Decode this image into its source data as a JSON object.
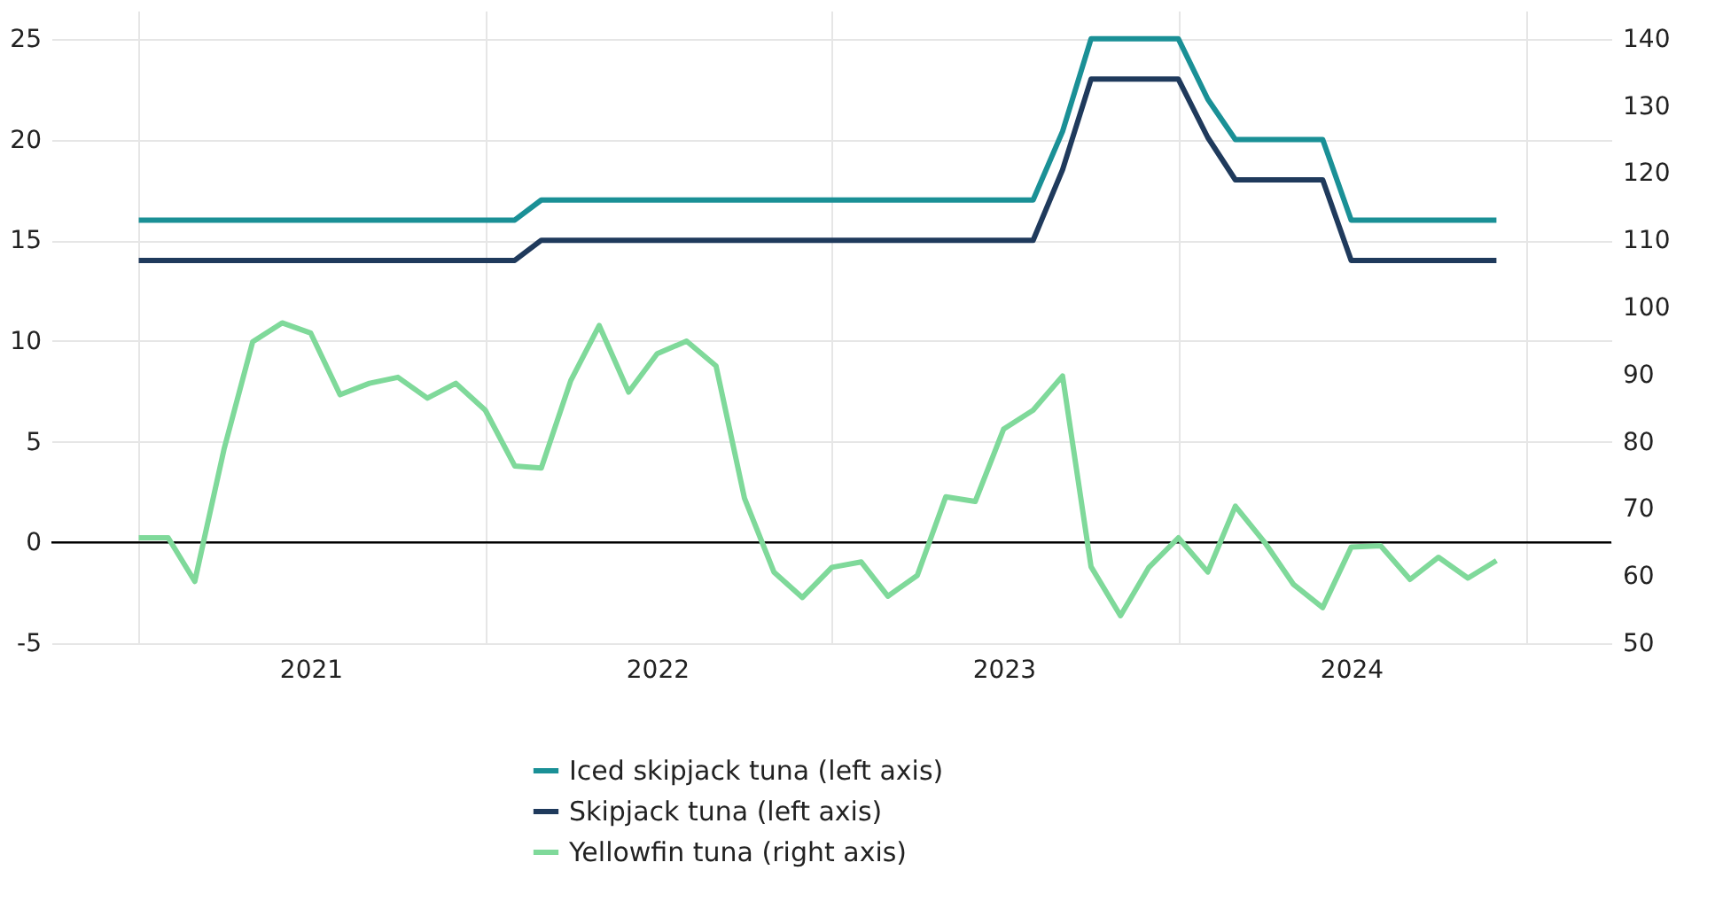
{
  "chart_data": {
    "type": "line",
    "x": [
      "2021-01",
      "2021-02",
      "2021-03",
      "2021-04",
      "2021-05",
      "2021-06",
      "2021-07",
      "2021-08",
      "2021-09",
      "2021-10",
      "2021-11",
      "2021-12",
      "2022-01",
      "2022-02",
      "2022-03",
      "2022-04",
      "2022-05",
      "2022-06",
      "2022-07",
      "2022-08",
      "2022-09",
      "2022-10",
      "2022-11",
      "2022-12",
      "2023-01",
      "2023-02",
      "2023-03",
      "2023-04",
      "2023-05",
      "2023-06",
      "2023-07",
      "2023-08",
      "2023-09",
      "2023-10",
      "2023-11",
      "2023-12",
      "2024-01",
      "2024-02",
      "2024-03",
      "2024-04",
      "2024-05",
      "2024-06",
      "2024-07",
      "2024-08",
      "2024-09",
      "2024-10",
      "2024-11",
      "2024-12"
    ],
    "series": [
      {
        "name": "Iced skipjack tuna (left axis)",
        "color": "#1a9096",
        "axis": "y",
        "values": [
          16,
          16,
          16,
          16,
          16,
          16,
          16,
          16,
          16,
          16,
          16,
          16,
          16,
          16,
          17,
          17,
          17,
          17,
          17,
          17,
          17,
          17,
          17,
          17,
          17,
          17,
          17,
          17,
          17,
          17,
          17,
          17,
          20.4,
          25,
          25,
          25,
          25,
          22,
          20,
          20,
          20,
          20,
          16,
          16,
          16,
          16,
          16,
          16
        ]
      },
      {
        "name": "Skipjack tuna (left axis)",
        "color": "#1f3a5c",
        "axis": "y",
        "values": [
          14,
          14,
          14,
          14,
          14,
          14,
          14,
          14,
          14,
          14,
          14,
          14,
          14,
          14,
          15,
          15,
          15,
          15,
          15,
          15,
          15,
          15,
          15,
          15,
          15,
          15,
          15,
          15,
          15,
          15,
          15,
          15,
          18.5,
          23,
          23,
          23,
          23,
          20.1,
          18,
          18,
          18,
          18,
          14,
          14,
          14,
          14,
          14,
          14
        ]
      },
      {
        "name": "Yellowfin tuna (right axis)",
        "color": "#7fd99a",
        "axis": "y2",
        "values": [
          65.7,
          65.7,
          59.2,
          79.0,
          94.9,
          97.7,
          96.2,
          87.0,
          88.7,
          89.6,
          86.5,
          88.7,
          84.7,
          76.4,
          76.1,
          89.1,
          97.3,
          87.4,
          93.1,
          95.0,
          91.3,
          71.6,
          60.6,
          56.8,
          61.3,
          62.1,
          57.0,
          60.1,
          71.8,
          71.1,
          81.9,
          84.7,
          89.8,
          61.4,
          54.1,
          61.3,
          65.7,
          60.6,
          70.4,
          65.0,
          58.8,
          55.3,
          64.3,
          64.5,
          59.5,
          62.8,
          59.7,
          62.3
        ]
      }
    ],
    "xlim": [
      "2020-10",
      "2025-04"
    ],
    "xticks": [
      {
        "value": "2021-01",
        "label": null
      },
      {
        "value": "2021-07",
        "label": "2021"
      },
      {
        "value": "2022-01",
        "label": null
      },
      {
        "value": "2022-07",
        "label": "2022"
      },
      {
        "value": "2023-01",
        "label": null
      },
      {
        "value": "2023-07",
        "label": "2023"
      },
      {
        "value": "2024-01",
        "label": null
      },
      {
        "value": "2024-07",
        "label": "2024"
      },
      {
        "value": "2025-01",
        "label": null
      }
    ],
    "ylim": [
      -5,
      26.4
    ],
    "yticks": [
      -5,
      0,
      5,
      10,
      15,
      20,
      25
    ],
    "y2lim": [
      50,
      144.2
    ],
    "y2ticks": [
      50,
      60,
      70,
      80,
      90,
      100,
      110,
      120,
      130,
      140
    ],
    "ref_lines": [
      {
        "axis": "y",
        "value": 0,
        "color": "#000000"
      }
    ],
    "grid": true,
    "legend": "bottom",
    "marker": "none",
    "line_style": "solid"
  }
}
